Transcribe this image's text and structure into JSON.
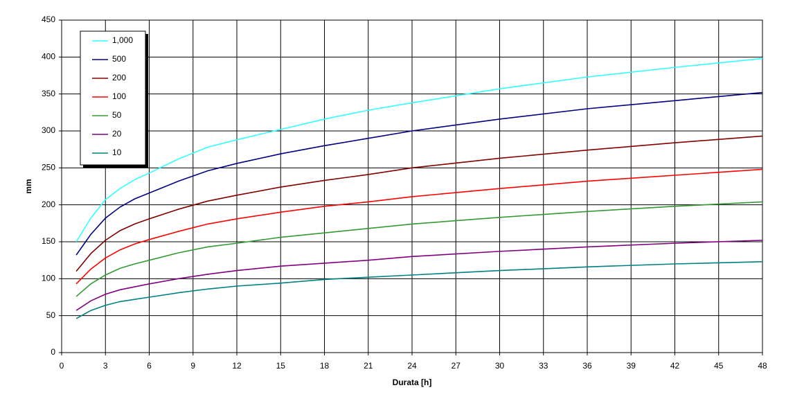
{
  "chart_data": {
    "type": "line",
    "x_label": "Durata [h]",
    "y_label": "mm",
    "x": [
      1,
      2,
      3,
      4,
      5,
      6,
      8,
      10,
      12,
      15,
      18,
      21,
      24,
      30,
      36,
      42,
      48
    ],
    "series": [
      {
        "name": "1,000",
        "color": "#33ffff",
        "values": [
          150,
          182,
          207,
          222,
          234,
          243,
          262,
          278,
          288,
          302,
          316,
          328,
          338,
          357,
          373,
          386,
          398
        ]
      },
      {
        "name": "500",
        "color": "#000080",
        "values": [
          132,
          160,
          182,
          197,
          208,
          216,
          232,
          246,
          256,
          269,
          280,
          290,
          300,
          316,
          330,
          341,
          352
        ]
      },
      {
        "name": "200",
        "color": "#800000",
        "values": [
          110,
          134,
          152,
          165,
          174,
          181,
          194,
          205,
          213,
          224,
          233,
          241,
          250,
          263,
          274,
          284,
          293
        ]
      },
      {
        "name": "100",
        "color": "#ff0000",
        "values": [
          93,
          113,
          128,
          139,
          147,
          153,
          164,
          174,
          181,
          190,
          198,
          204,
          211,
          222,
          232,
          240,
          248
        ]
      },
      {
        "name": "50",
        "color": "#339933",
        "values": [
          76,
          93,
          105,
          114,
          120,
          125,
          135,
          143,
          148,
          156,
          162,
          168,
          174,
          183,
          191,
          198,
          204
        ]
      },
      {
        "name": "20",
        "color": "#800080",
        "values": [
          57,
          70,
          79,
          85,
          89,
          93,
          100,
          106,
          111,
          117,
          121,
          125,
          130,
          137,
          143,
          148,
          152
        ]
      },
      {
        "name": "10",
        "color": "#008080",
        "values": [
          46,
          57,
          64,
          69,
          72,
          75,
          81,
          86,
          90,
          94,
          99,
          102,
          105,
          111,
          116,
          120,
          123
        ]
      }
    ],
    "xlim": [
      0,
      48
    ],
    "xticks": [
      0,
      3,
      6,
      9,
      12,
      15,
      18,
      21,
      24,
      27,
      30,
      33,
      36,
      39,
      42,
      45,
      48
    ],
    "ylim": [
      0,
      450
    ],
    "yticks": [
      0,
      50,
      100,
      150,
      200,
      250,
      300,
      350,
      400,
      450
    ],
    "grid": true,
    "legend": "upper left"
  }
}
